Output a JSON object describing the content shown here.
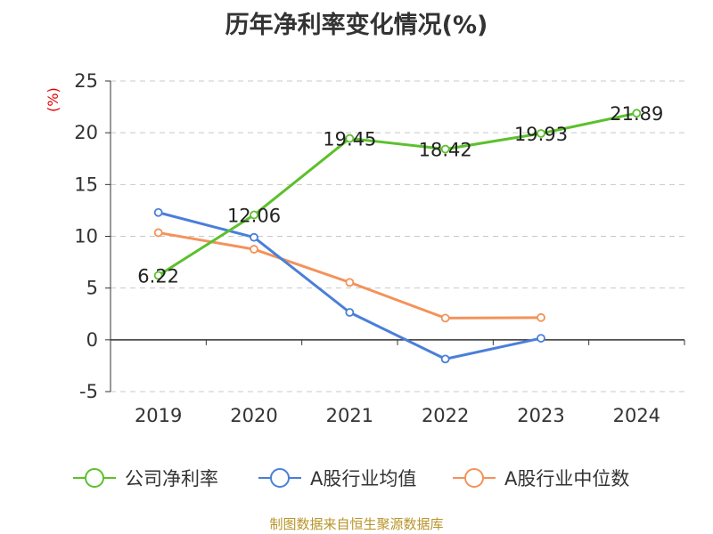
{
  "chart_data": {
    "type": "line",
    "title": "历年净利率变化情况(%)",
    "ylabel": "(%)",
    "categories": [
      "2019",
      "2020",
      "2021",
      "2022",
      "2023",
      "2024"
    ],
    "ylim": [
      -5,
      25
    ],
    "yticks": [
      "25",
      "20",
      "15",
      "10",
      "5",
      "0",
      "-5"
    ],
    "ytick_values": [
      25,
      20,
      15,
      10,
      5,
      0,
      -5
    ],
    "grid": true,
    "legend_position": "bottom",
    "series": [
      {
        "name": "公司净利率",
        "color": "#5cc02c",
        "values": [
          6.22,
          12.06,
          19.45,
          18.42,
          19.93,
          21.89
        ],
        "labels": [
          "6.22",
          "12.06",
          "19.45",
          "18.42",
          "19.93",
          "21.89"
        ]
      },
      {
        "name": "A股行业均值",
        "color": "#4a7fd9",
        "values": [
          12.3,
          9.9,
          2.65,
          -1.85,
          0.15,
          null
        ]
      },
      {
        "name": "A股行业中位数",
        "color": "#f4925a",
        "values": [
          10.35,
          8.75,
          5.55,
          2.1,
          2.15,
          null
        ]
      }
    ]
  },
  "source": "制图数据来自恒生聚源数据库"
}
